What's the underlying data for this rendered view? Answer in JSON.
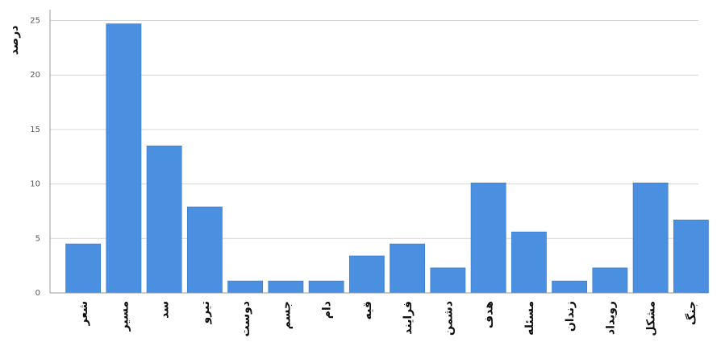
{
  "chart_data": {
    "type": "bar",
    "title": "",
    "xlabel": "",
    "ylabel": "درصد",
    "ylim": [
      0,
      26
    ],
    "yticks": [
      0,
      5,
      10,
      15,
      20,
      25
    ],
    "grid": true,
    "categories": [
      "شعر",
      "مسیر",
      "سد",
      "تیرو",
      "دوست",
      "جسم",
      "دام",
      "قیه",
      "فرایند",
      "دشمن",
      "هدف",
      "مسئله",
      "زندان",
      "رویداد",
      "مشکل",
      "جنگ"
    ],
    "values": [
      4.5,
      24.7,
      13.5,
      7.9,
      1.1,
      1.1,
      1.1,
      3.4,
      4.5,
      2.3,
      10.1,
      5.6,
      1.1,
      2.3,
      10.1,
      6.7
    ],
    "colors": {
      "bar": "#4a8fe0",
      "bar_edge": "#3a78c8",
      "grid": "#d6d6d6",
      "axis": "#9a9a9a",
      "background": "#ffffff"
    }
  }
}
